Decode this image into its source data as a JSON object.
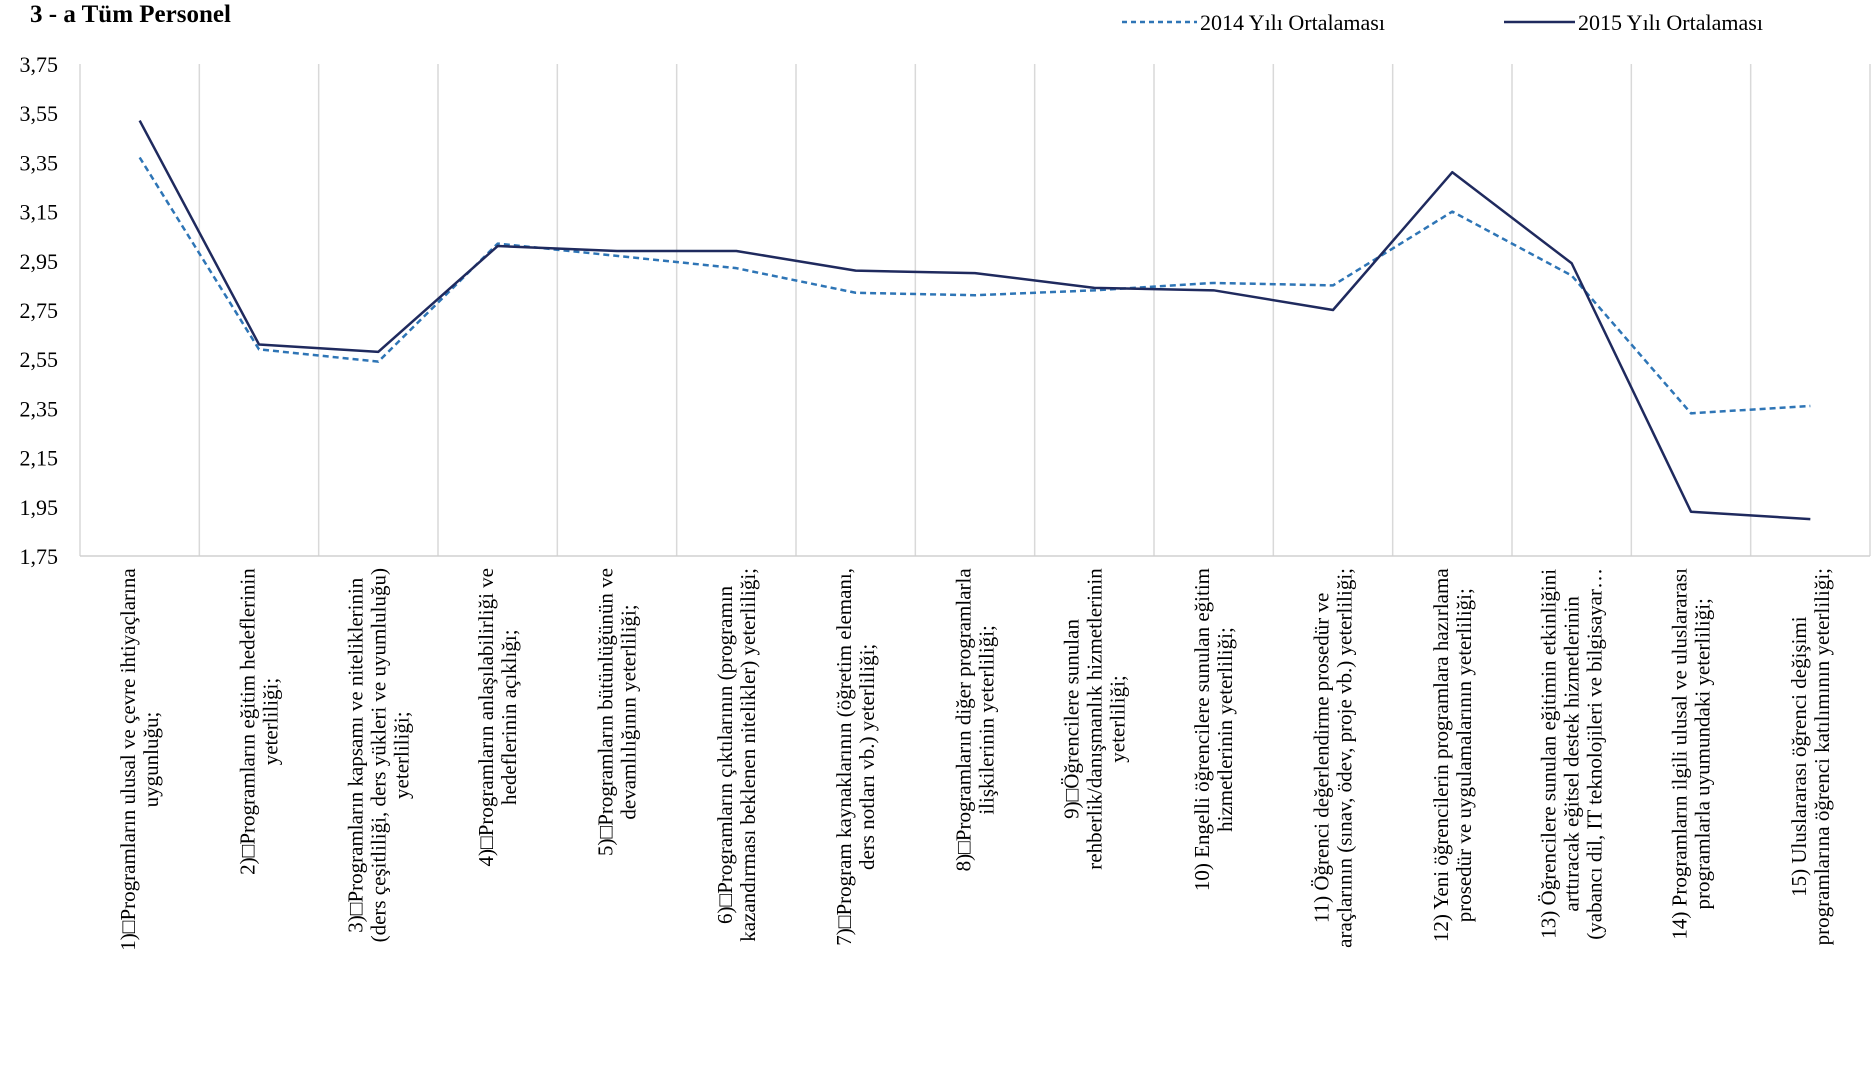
{
  "chart_data": {
    "type": "line",
    "title": "3 - a Tüm Personel",
    "xlabel": "",
    "ylabel": "",
    "ylim": [
      1.75,
      3.75
    ],
    "yticks": [
      "3,75",
      "3,55",
      "3,35",
      "3,15",
      "2,95",
      "2,75",
      "2,55",
      "2,35",
      "2,15",
      "1,95",
      "1,75"
    ],
    "grid": "vertical",
    "legend_position": "top-right",
    "categories": [
      [
        "1)□Programların ulusal ve çevre ihtiyaçlarına",
        "uygunluğu;"
      ],
      [
        "2)□Programların eğitim hedeflerinin",
        "yeterliliği;"
      ],
      [
        "3)□Programların kapsamı ve niteliklerinin",
        "(ders çeşitliliği, ders yükleri ve uyumluluğu)",
        "yeterliliği;"
      ],
      [
        "4)□Programların anlaşılabilirliği ve",
        "hedeflerinin açıklığı;"
      ],
      [
        "5)□Programların bütünlüğünün ve",
        "devamlılığının yeterliliği;"
      ],
      [
        "6)□Programların çıktılarının (programın",
        "kazandırması beklenen nitelikler) yeterliliği;"
      ],
      [
        "7)□Program kaynaklarının (öğretim elemanı,",
        "ders notları vb.)    yeterliliği;"
      ],
      [
        "8)□Programların diğer programlarla",
        "ilişkilerinin yeterliliği;"
      ],
      [
        "9)□Öğrencilere sunulan",
        "rehberlik/danışmanlık hizmetlerinin",
        "yeterliliği;"
      ],
      [
        "10) Engelli öğrencilere sunulan eğitim",
        "hizmetlerinin yeterliliği;"
      ],
      [
        "11) Öğrenci değerlendirme prosedür ve",
        "araçlarının (sınav, ödev, proje vb.) yeterliliği;"
      ],
      [
        "12) Yeni öğrencilerin programlara hazırlama",
        "prosedür ve uygulamalarının yeterliliği;"
      ],
      [
        "13) Öğrencilere sunulan eğitimin etkinliğini",
        "arttıracak eğitsel destek hizmetlerinin",
        "(yabancı dil, IT teknolojileri ve bilgisayar…"
      ],
      [
        "14) Programların ilgili ulusal ve uluslararası",
        "programlarla uyumundaki yeterliliği;"
      ],
      [
        "15) Uluslararası öğrenci değişimi",
        "programlarına öğrenci katılımının yeterliliği;"
      ]
    ],
    "series": [
      {
        "name": "2014 Yılı Ortalaması",
        "color": "#2E75B6",
        "style": "dashed",
        "values": [
          3.37,
          2.59,
          2.54,
          3.02,
          2.97,
          2.92,
          2.82,
          2.81,
          2.83,
          2.86,
          2.85,
          3.15,
          2.89,
          2.33,
          2.36
        ]
      },
      {
        "name": "2015 Yılı Ortalaması",
        "color": "#1F2A5E",
        "style": "solid",
        "values": [
          3.52,
          2.61,
          2.58,
          3.01,
          2.99,
          2.99,
          2.91,
          2.9,
          2.84,
          2.83,
          2.75,
          3.31,
          2.94,
          1.93,
          1.9
        ]
      }
    ]
  }
}
